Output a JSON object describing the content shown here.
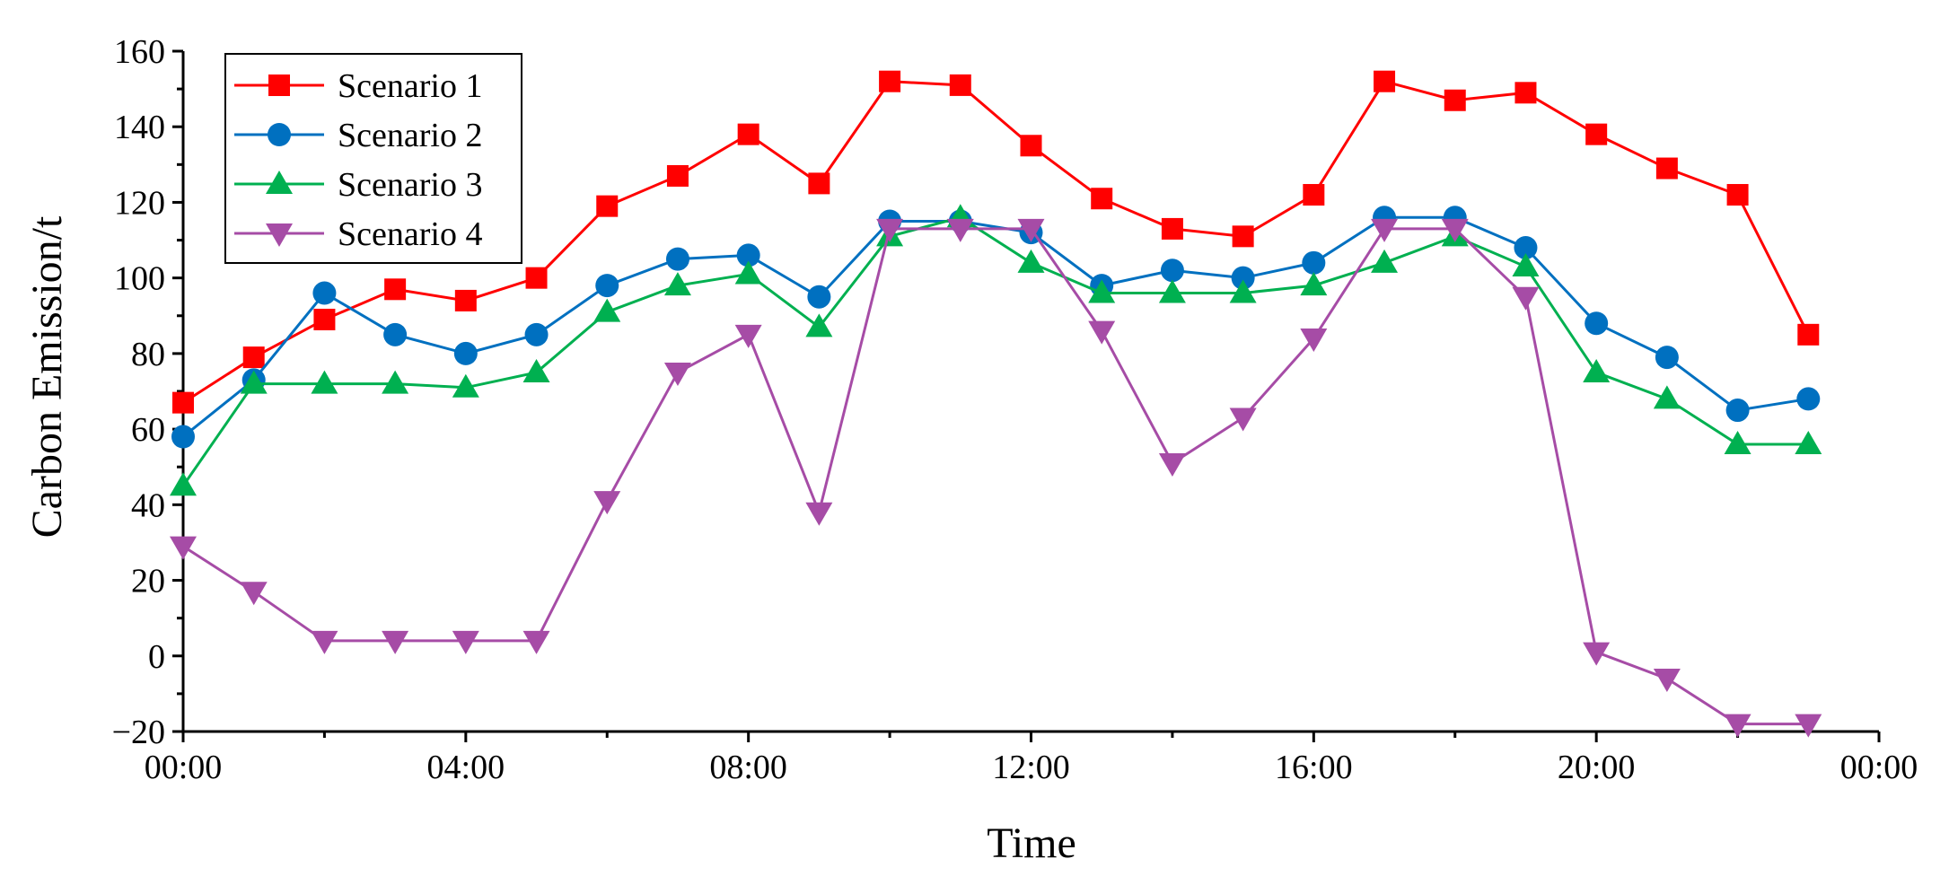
{
  "chart_data": {
    "type": "line",
    "title": "",
    "xlabel": "Time",
    "ylabel": "Carbon Emission/t",
    "xlim": [
      0,
      24
    ],
    "ylim": [
      -20,
      160
    ],
    "yticks": [
      -20,
      0,
      20,
      40,
      60,
      80,
      100,
      120,
      140,
      160
    ],
    "xticks": [
      {
        "value": 0,
        "label": "00:00"
      },
      {
        "value": 4,
        "label": "04:00"
      },
      {
        "value": 8,
        "label": "08:00"
      },
      {
        "value": 12,
        "label": "12:00"
      },
      {
        "value": 16,
        "label": "16:00"
      },
      {
        "value": 20,
        "label": "20:00"
      },
      {
        "value": 24,
        "label": "00:00"
      }
    ],
    "x": [
      0,
      1,
      2,
      3,
      4,
      5,
      6,
      7,
      8,
      9,
      10,
      11,
      12,
      13,
      14,
      15,
      16,
      17,
      18,
      19,
      20,
      21,
      22,
      23
    ],
    "legend_position": "top-left",
    "grid": false,
    "series": [
      {
        "name": "Scenario 1",
        "color": "#ff0000",
        "marker": "square",
        "values": [
          67,
          79,
          89,
          97,
          94,
          100,
          119,
          127,
          138,
          125,
          152,
          151,
          135,
          121,
          113,
          111,
          122,
          152,
          147,
          149,
          138,
          129,
          122,
          85
        ]
      },
      {
        "name": "Scenario 2",
        "color": "#0070c0",
        "marker": "circle",
        "values": [
          58,
          73,
          96,
          85,
          80,
          85,
          98,
          105,
          106,
          95,
          115,
          115,
          112,
          98,
          102,
          100,
          104,
          116,
          116,
          108,
          88,
          79,
          65,
          68
        ]
      },
      {
        "name": "Scenario 3",
        "color": "#00b050",
        "marker": "triangle-up",
        "values": [
          45,
          72,
          72,
          72,
          71,
          75,
          91,
          98,
          101,
          87,
          111,
          116,
          104,
          96,
          96,
          96,
          98,
          104,
          111,
          103,
          75,
          68,
          56,
          56
        ]
      },
      {
        "name": "Scenario 4",
        "color": "#a64ca6",
        "marker": "triangle-down",
        "values": [
          29,
          17,
          4,
          4,
          4,
          4,
          41,
          75,
          85,
          38,
          113,
          113,
          113,
          86,
          51,
          63,
          84,
          113,
          113,
          95,
          1,
          -6,
          -18,
          -18
        ]
      }
    ]
  }
}
